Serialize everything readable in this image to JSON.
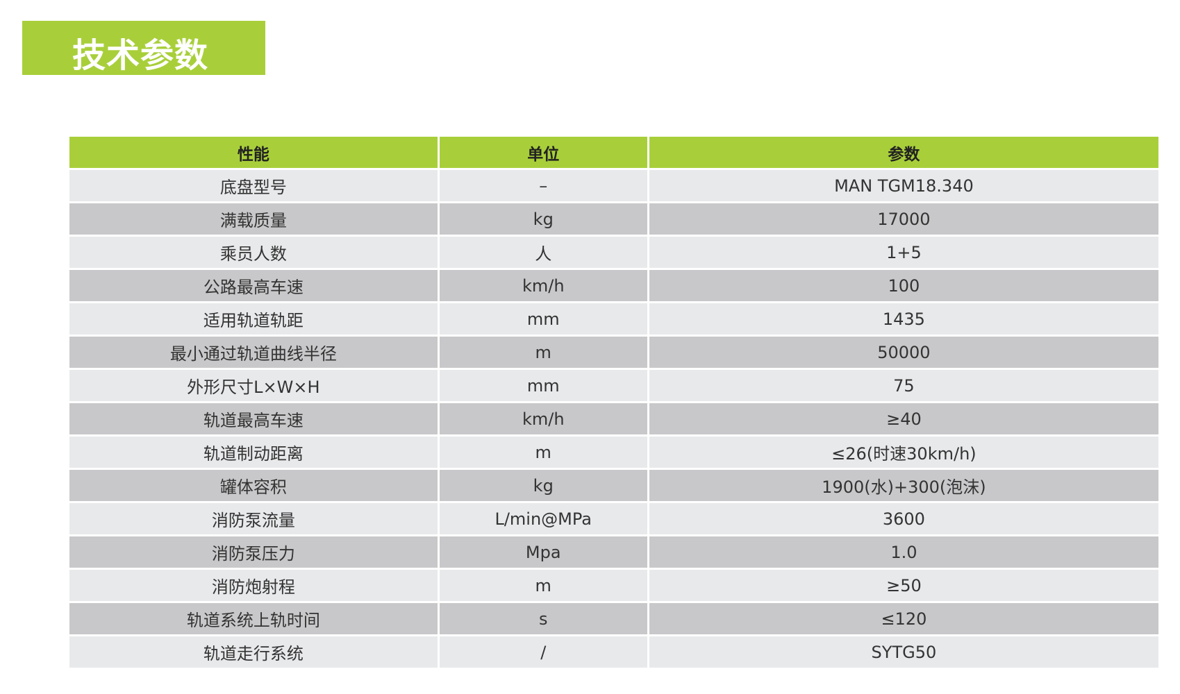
{
  "title": "技术参数",
  "colors": {
    "accent": "#a8cf3a",
    "row_light": "#e8e9eb",
    "row_dark": "#c8c8ca"
  },
  "table": {
    "headers": [
      "性能",
      "单位",
      "参数"
    ],
    "rows": [
      [
        "底盘型号",
        "–",
        "MAN TGM18.340"
      ],
      [
        "满载质量",
        "kg",
        "17000"
      ],
      [
        "乘员人数",
        "人",
        "1+5"
      ],
      [
        "公路最高车速",
        "km/h",
        "100"
      ],
      [
        "适用轨道轨距",
        "mm",
        "1435"
      ],
      [
        "最小通过轨道曲线半径",
        "m",
        "50000"
      ],
      [
        "外形尺寸L×W×H",
        "mm",
        "75"
      ],
      [
        "轨道最高车速",
        "km/h",
        "≥40"
      ],
      [
        "轨道制动距离",
        "m",
        "≤26(时速30km/h)"
      ],
      [
        "罐体容积",
        "kg",
        "1900(水)+300(泡沫)"
      ],
      [
        "消防泵流量",
        "L/min@MPa",
        "3600"
      ],
      [
        "消防泵压力",
        "Mpa",
        "1.0"
      ],
      [
        "消防炮射程",
        "m",
        "≥50"
      ],
      [
        "轨道系统上轨时间",
        "s",
        "≤120"
      ],
      [
        "轨道走行系统",
        "/",
        "SYTG50"
      ]
    ]
  }
}
